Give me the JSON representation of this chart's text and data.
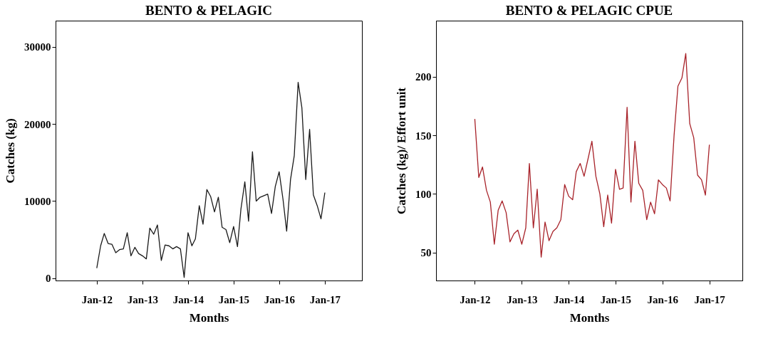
{
  "chart_data": [
    {
      "type": "line",
      "title": "BENTO & PELAGIC",
      "xlabel": "Months",
      "ylabel": "Catches (kg)",
      "x": [
        "2012-01",
        "2012-02",
        "2012-03",
        "2012-04",
        "2012-05",
        "2012-06",
        "2012-07",
        "2012-08",
        "2012-09",
        "2012-10",
        "2012-11",
        "2012-12",
        "2013-01",
        "2013-02",
        "2013-03",
        "2013-04",
        "2013-05",
        "2013-06",
        "2013-07",
        "2013-08",
        "2013-09",
        "2013-10",
        "2013-11",
        "2013-12",
        "2014-01",
        "2014-02",
        "2014-03",
        "2014-04",
        "2014-05",
        "2014-06",
        "2014-07",
        "2014-08",
        "2014-09",
        "2014-10",
        "2014-11",
        "2014-12",
        "2015-01",
        "2015-02",
        "2015-03",
        "2015-04",
        "2015-05",
        "2015-06",
        "2015-07",
        "2015-08",
        "2015-09",
        "2015-10",
        "2015-11",
        "2015-12",
        "2016-01",
        "2016-02",
        "2016-03",
        "2016-04",
        "2016-05",
        "2016-06",
        "2016-07",
        "2016-08",
        "2016-09",
        "2016-10",
        "2016-11",
        "2016-12",
        "2017-01"
      ],
      "series": [
        {
          "color": "#1a1a1a",
          "values": [
            1300,
            4200,
            5800,
            4500,
            4400,
            3300,
            3700,
            3800,
            5900,
            2900,
            4000,
            3200,
            2900,
            2500,
            6500,
            5700,
            6900,
            2300,
            4300,
            4200,
            3800,
            4100,
            3800,
            100,
            5900,
            4200,
            5100,
            9400,
            7000,
            11500,
            10600,
            8600,
            10500,
            6600,
            6300,
            4600,
            6700,
            4100,
            9000,
            12500,
            7400,
            16400,
            10000,
            10500,
            10700,
            10900,
            8400,
            11900,
            13800,
            10200,
            6100,
            12800,
            15900,
            25400,
            22100,
            12800,
            19300,
            10800,
            9400,
            7700,
            11100
          ]
        }
      ],
      "xlim": [
        "2011-02-05",
        "2017-10-25"
      ],
      "xticks": [
        {
          "value": "2012-01",
          "label": "Jan-12"
        },
        {
          "value": "2013-01",
          "label": "Jan-13"
        },
        {
          "value": "2014-01",
          "label": "Jan-14"
        },
        {
          "value": "2015-01",
          "label": "Jan-15"
        },
        {
          "value": "2016-01",
          "label": "Jan-16"
        },
        {
          "value": "2017-01",
          "label": "Jan-17"
        }
      ],
      "ylim": [
        -300,
        33400
      ],
      "yticks": [
        0,
        10000,
        20000,
        30000
      ],
      "grid": false
    },
    {
      "type": "line",
      "title": "BENTO & PELAGIC CPUE",
      "xlabel": "Months",
      "ylabel": "Catches (kg)/ Effort unit",
      "x": [
        "2012-01",
        "2012-02",
        "2012-03",
        "2012-04",
        "2012-05",
        "2012-06",
        "2012-07",
        "2012-08",
        "2012-09",
        "2012-10",
        "2012-11",
        "2012-12",
        "2013-01",
        "2013-02",
        "2013-03",
        "2013-04",
        "2013-05",
        "2013-06",
        "2013-07",
        "2013-08",
        "2013-09",
        "2013-10",
        "2013-11",
        "2013-12",
        "2014-01",
        "2014-02",
        "2014-03",
        "2014-04",
        "2014-05",
        "2014-06",
        "2014-07",
        "2014-08",
        "2014-09",
        "2014-10",
        "2014-11",
        "2014-12",
        "2015-01",
        "2015-02",
        "2015-03",
        "2015-04",
        "2015-05",
        "2015-06",
        "2015-07",
        "2015-08",
        "2015-09",
        "2015-10",
        "2015-11",
        "2015-12",
        "2016-01",
        "2016-02",
        "2016-03",
        "2016-04",
        "2016-05",
        "2016-06",
        "2016-07",
        "2016-08",
        "2016-09",
        "2016-10",
        "2016-11",
        "2016-12",
        "2017-01"
      ],
      "series": [
        {
          "color": "#a8232a",
          "values": [
            164,
            114,
            123,
            103,
            93,
            57,
            86,
            94,
            84,
            59,
            66,
            69,
            57,
            71,
            126,
            71,
            104,
            46,
            76,
            60,
            68,
            71,
            78,
            108,
            98,
            95,
            119,
            126,
            115,
            130,
            145,
            115,
            100,
            72,
            99,
            75,
            121,
            104,
            105,
            174,
            93,
            145,
            109,
            103,
            78,
            93,
            83,
            112,
            108,
            105,
            94,
            150,
            192,
            199,
            220,
            160,
            148,
            116,
            112,
            99,
            142
          ]
        }
      ],
      "xlim": [
        "2011-03-05",
        "2017-09-15"
      ],
      "xticks": [
        {
          "value": "2012-01",
          "label": "Jan-12"
        },
        {
          "value": "2013-01",
          "label": "Jan-13"
        },
        {
          "value": "2014-01",
          "label": "Jan-14"
        },
        {
          "value": "2015-01",
          "label": "Jan-15"
        },
        {
          "value": "2016-01",
          "label": "Jan-16"
        },
        {
          "value": "2017-01",
          "label": "Jan-17"
        }
      ],
      "ylim": [
        26,
        248
      ],
      "yticks": [
        50,
        100,
        150,
        200
      ],
      "grid": false
    }
  ]
}
